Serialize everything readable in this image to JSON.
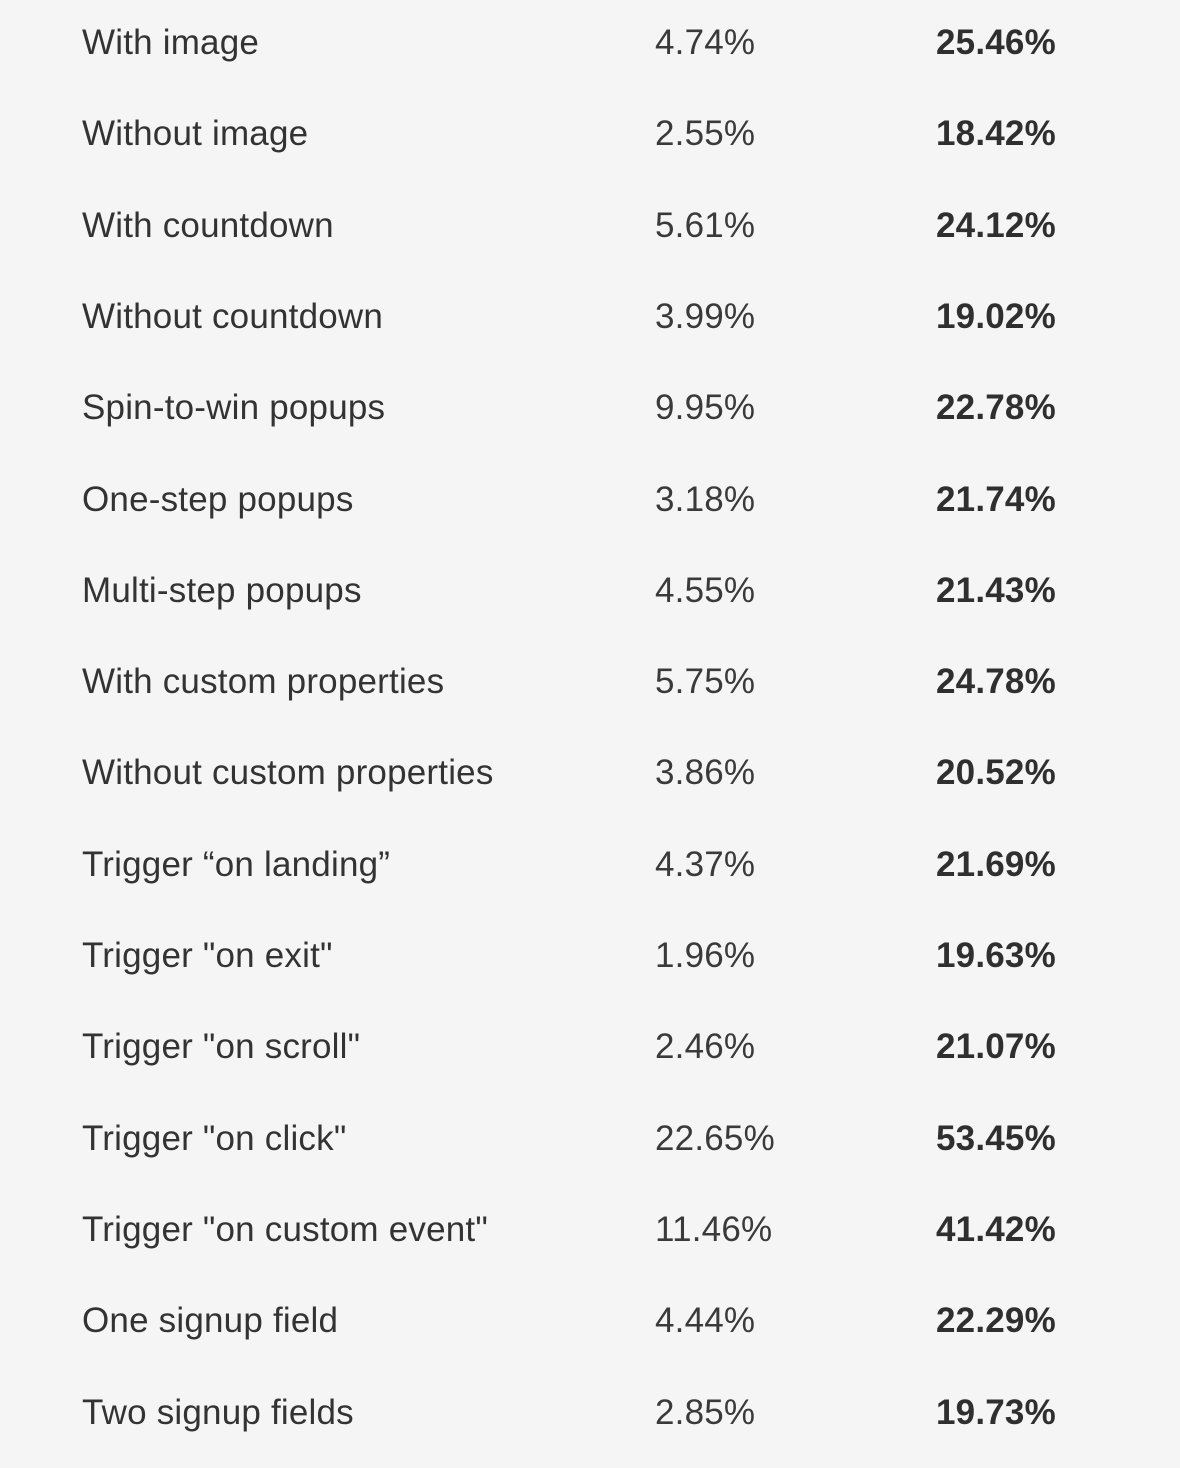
{
  "rows": [
    {
      "label": "With image",
      "value": "4.74%",
      "bold_value": "25.46%"
    },
    {
      "label": "Without image",
      "value": "2.55%",
      "bold_value": "18.42%"
    },
    {
      "label": "With countdown",
      "value": "5.61%",
      "bold_value": "24.12%"
    },
    {
      "label": "Without countdown",
      "value": "3.99%",
      "bold_value": "19.02%"
    },
    {
      "label": "Spin-to-win popups",
      "value": "9.95%",
      "bold_value": "22.78%"
    },
    {
      "label": "One-step popups",
      "value": "3.18%",
      "bold_value": "21.74%"
    },
    {
      "label": "Multi-step popups",
      "value": "4.55%",
      "bold_value": "21.43%"
    },
    {
      "label": "With custom properties",
      "value": "5.75%",
      "bold_value": "24.78%"
    },
    {
      "label": "Without custom properties",
      "value": "3.86%",
      "bold_value": "20.52%"
    },
    {
      "label": "Trigger “on landing”",
      "value": "4.37%",
      "bold_value": "21.69%"
    },
    {
      "label": "Trigger \"on exit\"",
      "value": "1.96%",
      "bold_value": "19.63%"
    },
    {
      "label": "Trigger \"on scroll\"",
      "value": "2.46%",
      "bold_value": "21.07%"
    },
    {
      "label": "Trigger \"on click\"",
      "value": "22.65%",
      "bold_value": "53.45%"
    },
    {
      "label": "Trigger \"on custom event\"",
      "value": "11.46%",
      "bold_value": "41.42%"
    },
    {
      "label": "One signup field",
      "value": "4.44%",
      "bold_value": "22.29%"
    },
    {
      "label": "Two signup fields",
      "value": "2.85%",
      "bold_value": "19.73%"
    }
  ]
}
